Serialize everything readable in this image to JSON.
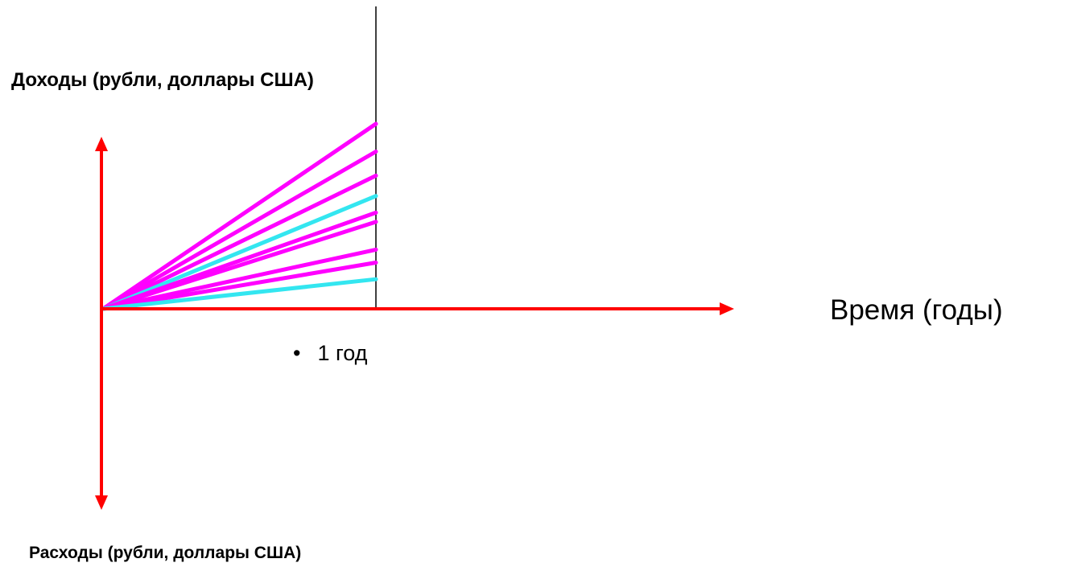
{
  "labels": {
    "income_axis": "Доходы (рубли, доллары США)",
    "expense_axis": "Расходы (рубли, доллары США)",
    "time_axis": "Время (годы)",
    "year_mark_bullet": "•",
    "year_mark": "1  год"
  },
  "colors": {
    "axis": "#ff0000",
    "year_line": "#000000",
    "magenta": "#ff00ff",
    "cyan": "#33e6f0"
  },
  "rays": [
    {
      "color": "magenta",
      "level": 1.0
    },
    {
      "color": "magenta",
      "level": 0.85
    },
    {
      "color": "magenta",
      "level": 0.72
    },
    {
      "color": "cyan",
      "level": 0.61
    },
    {
      "color": "magenta",
      "level": 0.52
    },
    {
      "color": "magenta",
      "level": 0.47
    },
    {
      "color": "magenta",
      "level": 0.32
    },
    {
      "color": "magenta",
      "level": 0.25
    },
    {
      "color": "cyan",
      "level": 0.16
    }
  ]
}
